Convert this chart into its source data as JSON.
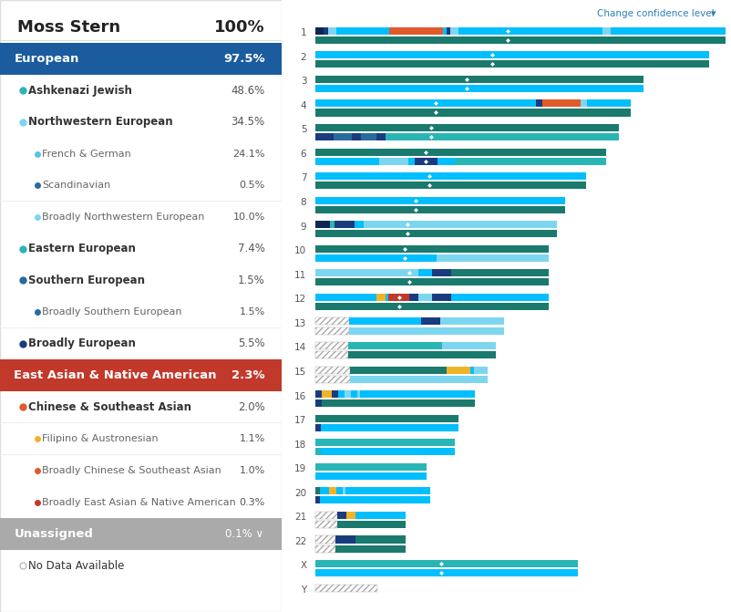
{
  "title_name": "Moss Stern",
  "title_pct": "100%",
  "categories": [
    {
      "label": "European",
      "pct": "97.5%",
      "bg": "#1a5c9e",
      "text_color": "#ffffff",
      "indent": 0,
      "bold": true
    },
    {
      "label": "Ashkenazi Jewish",
      "pct": "48.6%",
      "bg": "#ffffff",
      "text_color": "#333333",
      "indent": 1,
      "dot_color": "#2ab5b5",
      "bold": true
    },
    {
      "label": "Northwestern European",
      "pct": "34.5%",
      "bg": "#ffffff",
      "text_color": "#333333",
      "indent": 1,
      "dot_color": "#7dd6f0",
      "bold": true
    },
    {
      "label": "French & German",
      "pct": "24.1%",
      "bg": "#ffffff",
      "text_color": "#666666",
      "indent": 2,
      "dot_color": "#5bbfea",
      "bold": false
    },
    {
      "label": "Scandinavian",
      "pct": "0.5%",
      "bg": "#ffffff",
      "text_color": "#666666",
      "indent": 2,
      "dot_color": "#2a6b9e",
      "bold": false
    },
    {
      "label": "Broadly Northwestern European",
      "pct": "10.0%",
      "bg": "#ffffff",
      "text_color": "#666666",
      "indent": 2,
      "dot_color": "#7dd6f0",
      "bold": false
    },
    {
      "label": "Eastern European",
      "pct": "7.4%",
      "bg": "#ffffff",
      "text_color": "#333333",
      "indent": 1,
      "dot_color": "#2ab5b5",
      "bold": true
    },
    {
      "label": "Southern European",
      "pct": "1.5%",
      "bg": "#ffffff",
      "text_color": "#333333",
      "indent": 1,
      "dot_color": "#2a6b9e",
      "bold": true
    },
    {
      "label": "Broadly Southern European",
      "pct": "1.5%",
      "bg": "#ffffff",
      "text_color": "#666666",
      "indent": 2,
      "dot_color": "#2a6b9e",
      "bold": false
    },
    {
      "label": "Broadly European",
      "pct": "5.5%",
      "bg": "#ffffff",
      "text_color": "#333333",
      "indent": 1,
      "dot_color": "#1a3c7e",
      "bold": true
    },
    {
      "label": "East Asian & Native American",
      "pct": "2.3%",
      "bg": "#c0392b",
      "text_color": "#ffffff",
      "indent": 0,
      "bold": true
    },
    {
      "label": "Chinese & Southeast Asian",
      "pct": "2.0%",
      "bg": "#ffffff",
      "text_color": "#333333",
      "indent": 1,
      "dot_color": "#e05a2b",
      "bold": true
    },
    {
      "label": "Filipino & Austronesian",
      "pct": "1.1%",
      "bg": "#ffffff",
      "text_color": "#666666",
      "indent": 2,
      "dot_color": "#f0b429",
      "bold": false
    },
    {
      "label": "Broadly Chinese & Southeast Asian",
      "pct": "1.0%",
      "bg": "#ffffff",
      "text_color": "#666666",
      "indent": 2,
      "dot_color": "#e05a2b",
      "bold": false
    },
    {
      "label": "Broadly East Asian & Native American",
      "pct": "0.3%",
      "bg": "#ffffff",
      "text_color": "#666666",
      "indent": 2,
      "dot_color": "#c0392b",
      "bold": false
    },
    {
      "label": "Unassigned",
      "pct": "0.1%",
      "bg": "#aaaaaa",
      "text_color": "#ffffff",
      "indent": 0,
      "bold": true
    },
    {
      "label": "No Data Available",
      "pct": "",
      "bg": "#ffffff",
      "text_color": "#999999",
      "indent": 1,
      "dot_color": "#cccccc",
      "bold": false
    }
  ],
  "chromosomes": [
    "1",
    "2",
    "3",
    "4",
    "5",
    "6",
    "7",
    "8",
    "9",
    "10",
    "11",
    "12",
    "13",
    "14",
    "15",
    "16",
    "17",
    "18",
    "19",
    "20",
    "21",
    "22",
    "X",
    "Y"
  ],
  "chr_lengths": [
    1.0,
    0.96,
    0.8,
    0.77,
    0.74,
    0.71,
    0.66,
    0.61,
    0.59,
    0.57,
    0.57,
    0.57,
    0.46,
    0.44,
    0.42,
    0.39,
    0.35,
    0.34,
    0.27,
    0.28,
    0.22,
    0.22,
    0.64,
    0.15
  ],
  "colors": {
    "teal_dark": "#1a7a6e",
    "teal": "#2ab5b5",
    "cyan": "#00bfff",
    "light_blue": "#7dd6f0",
    "sky_blue": "#29abe2",
    "mid_blue": "#2a6b9e",
    "dark_blue": "#1a3c7e",
    "navy": "#0d2654",
    "orange": "#e05a2b",
    "red": "#c0392b",
    "yellow": "#f0b429",
    "white": "#ffffff"
  },
  "link_color": "#2980b9",
  "change_conf_text": "Change confidence level"
}
